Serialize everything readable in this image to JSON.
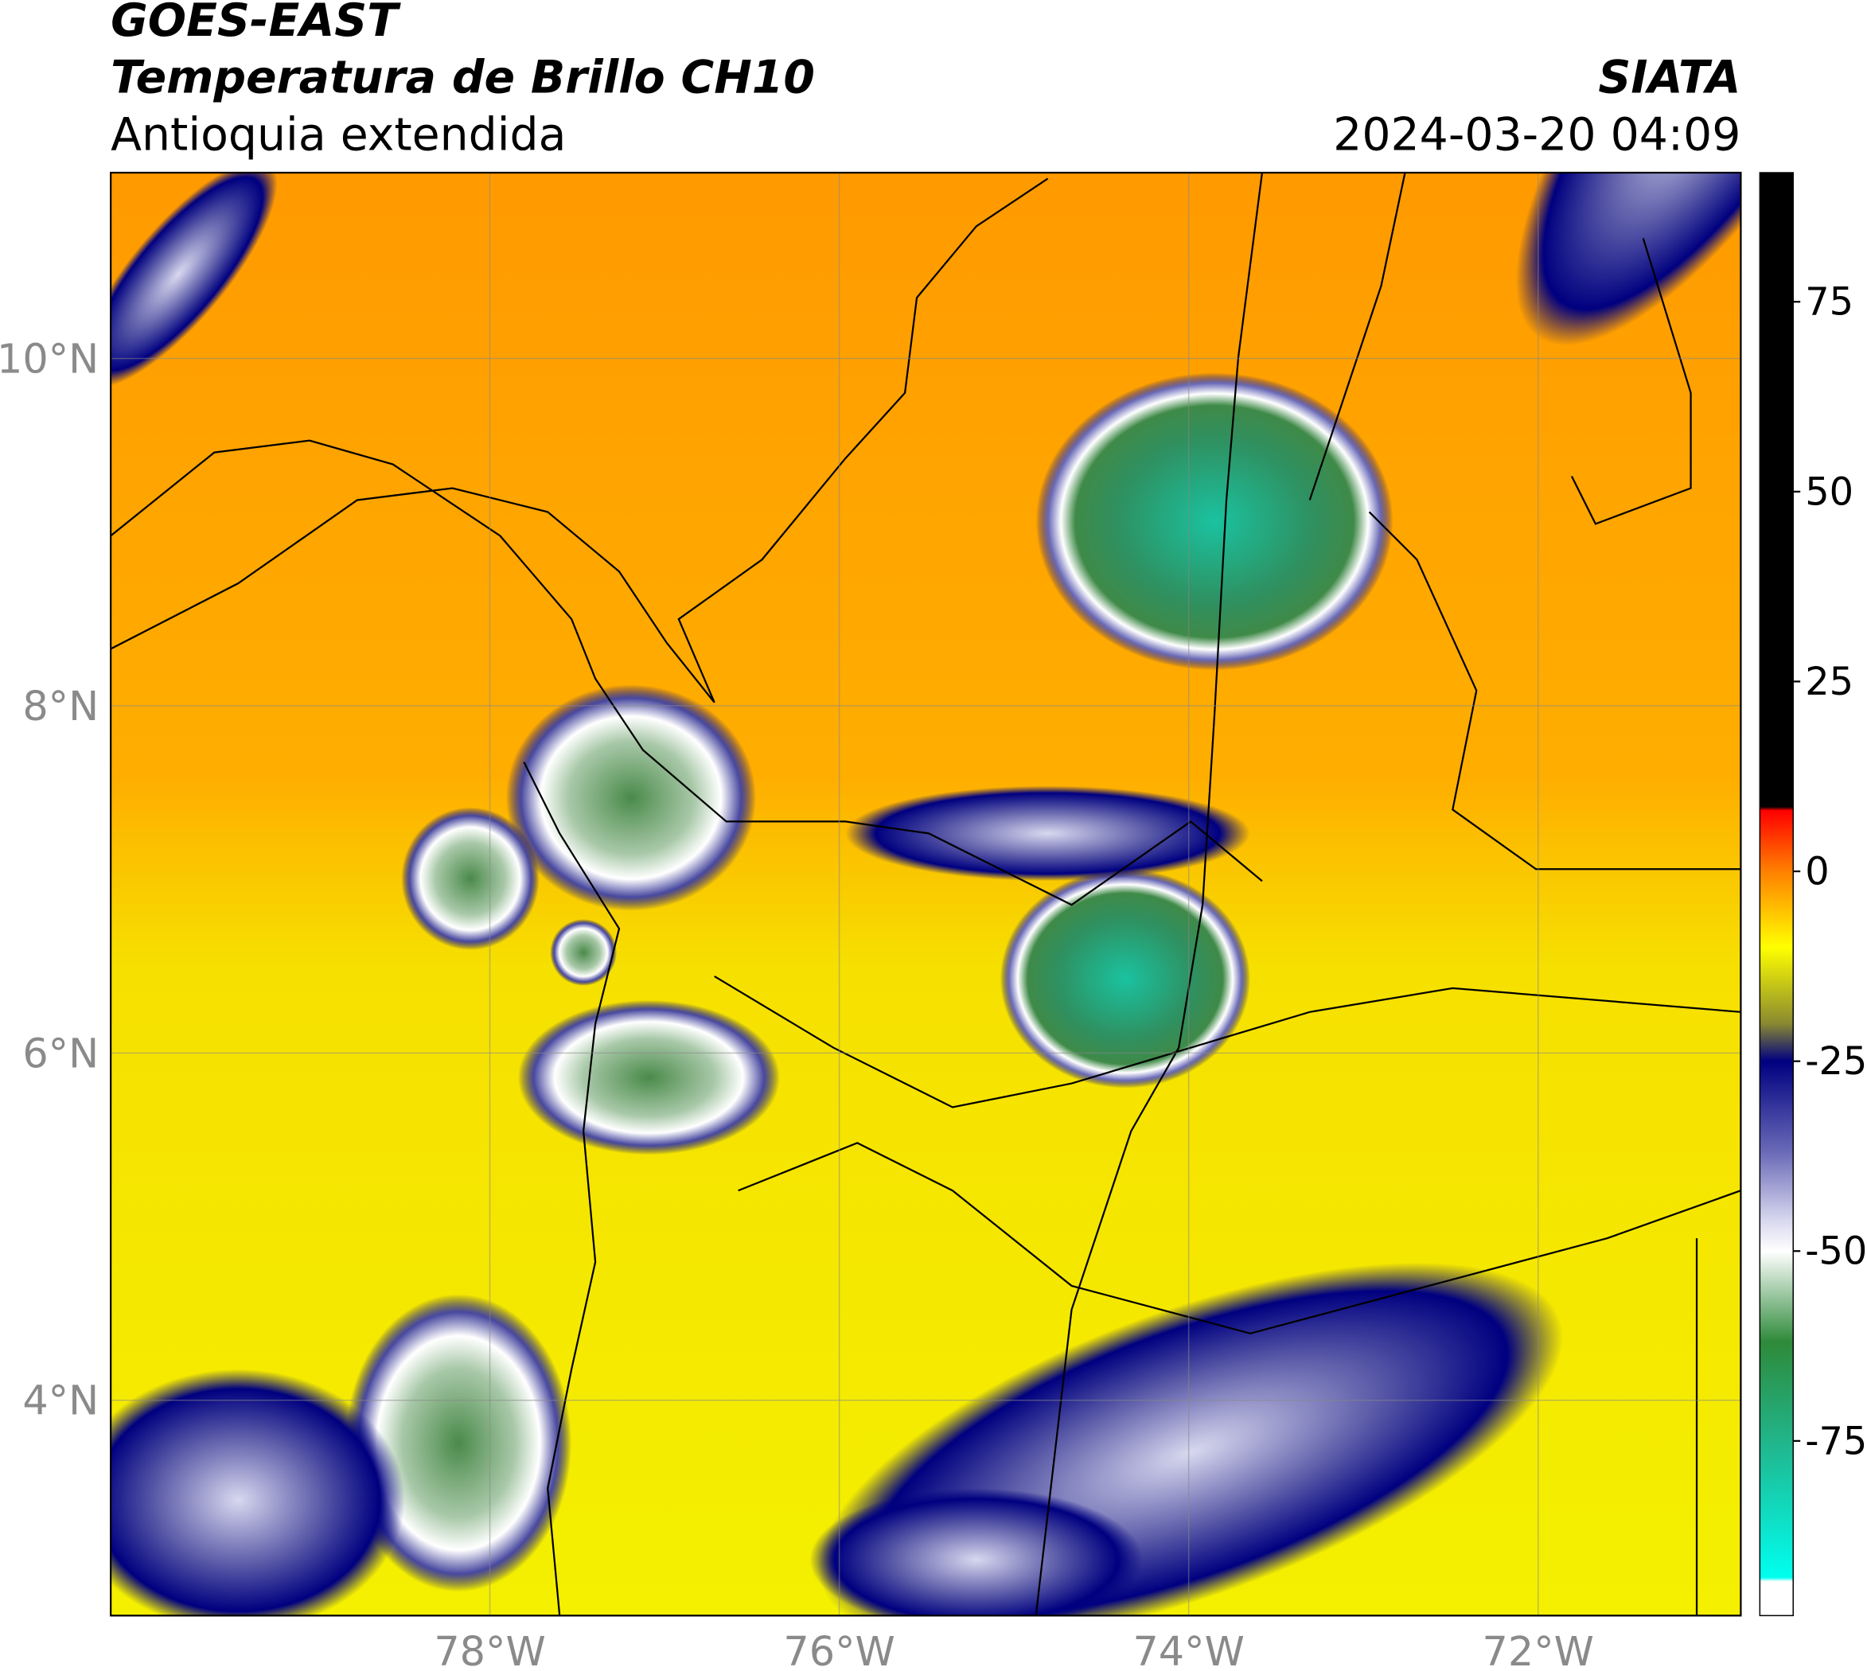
{
  "header": {
    "satellite": "GOES-EAST",
    "product": "Temperatura de Brillo CH10",
    "region": "Antioquia extendida",
    "source": "SIATA",
    "datetime": "2024-03-20 04:09"
  },
  "chart_data": {
    "type": "map",
    "xlim": [
      -80.17,
      -70.84
    ],
    "ylim": [
      2.76,
      11.07
    ],
    "xticks": [
      {
        "value": -78,
        "label": "78°W"
      },
      {
        "value": -76,
        "label": "76°W"
      },
      {
        "value": -74,
        "label": "74°W"
      },
      {
        "value": -72,
        "label": "72°W"
      }
    ],
    "yticks": [
      {
        "value": 4,
        "label": "4°N"
      },
      {
        "value": 6,
        "label": "6°N"
      },
      {
        "value": 8,
        "label": "8°N"
      },
      {
        "value": 10,
        "label": "10°N"
      }
    ],
    "grid": true,
    "colorbar": {
      "lim": [
        -98,
        92
      ],
      "ticks": [
        75,
        50,
        25,
        0,
        -25,
        -50,
        -75
      ],
      "stops": [
        {
          "value": 92,
          "color": "#000000"
        },
        {
          "value": 8.5,
          "color": "#000000"
        },
        {
          "value": 8,
          "color": "#ff0000"
        },
        {
          "value": 0,
          "color": "#ff8000"
        },
        {
          "value": -10,
          "color": "#ffff00"
        },
        {
          "value": -20,
          "color": "#8a8a30"
        },
        {
          "value": -25,
          "color": "#000080"
        },
        {
          "value": -37,
          "color": "#6a6ab8"
        },
        {
          "value": -46,
          "color": "#d8d8ef"
        },
        {
          "value": -50,
          "color": "#ffffff"
        },
        {
          "value": -62,
          "color": "#2e8a3a"
        },
        {
          "value": -76,
          "color": "#20b890"
        },
        {
          "value": -93,
          "color": "#00fff0"
        },
        {
          "value": -93.5,
          "color": "#ffffff"
        },
        {
          "value": -98,
          "color": "#ffffff"
        }
      ]
    }
  }
}
